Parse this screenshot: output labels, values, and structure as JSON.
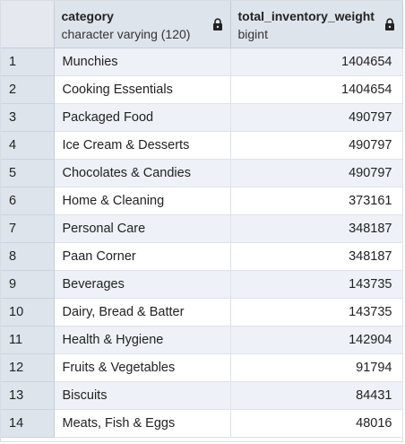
{
  "columns": [
    {
      "name": "category",
      "type": "character varying (120)",
      "locked": true
    },
    {
      "name": "total_inventory_weight",
      "type": "bigint",
      "locked": true
    }
  ],
  "rows": [
    {
      "num": "1",
      "category": "Munchies",
      "weight": "1404654"
    },
    {
      "num": "2",
      "category": "Cooking Essentials",
      "weight": "1404654"
    },
    {
      "num": "3",
      "category": "Packaged Food",
      "weight": "490797"
    },
    {
      "num": "4",
      "category": "Ice Cream & Desserts",
      "weight": "490797"
    },
    {
      "num": "5",
      "category": "Chocolates & Candies",
      "weight": "490797"
    },
    {
      "num": "6",
      "category": "Home & Cleaning",
      "weight": "373161"
    },
    {
      "num": "7",
      "category": "Personal Care",
      "weight": "348187"
    },
    {
      "num": "8",
      "category": "Paan Corner",
      "weight": "348187"
    },
    {
      "num": "9",
      "category": "Beverages",
      "weight": "143735"
    },
    {
      "num": "10",
      "category": "Dairy, Bread & Batter",
      "weight": "143735"
    },
    {
      "num": "11",
      "category": "Health & Hygiene",
      "weight": "142904"
    },
    {
      "num": "12",
      "category": "Fruits & Vegetables",
      "weight": "91794"
    },
    {
      "num": "13",
      "category": "Biscuits",
      "weight": "84431"
    },
    {
      "num": "14",
      "category": "Meats, Fish & Eggs",
      "weight": "48016"
    }
  ]
}
